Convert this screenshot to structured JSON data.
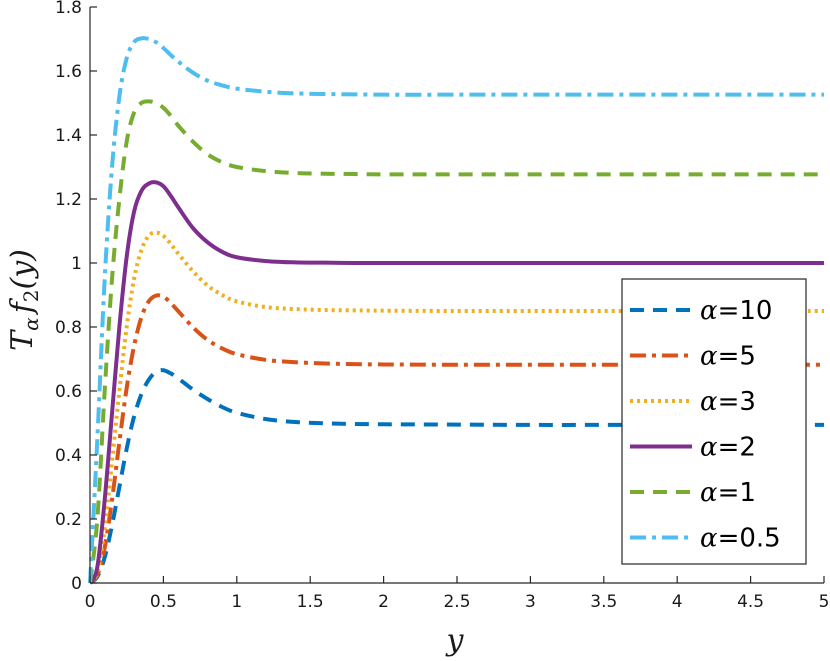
{
  "chart_data": {
    "type": "line",
    "title": "",
    "xlabel": "y",
    "ylabel": "T_α f_2(y)",
    "ylabel_parts": {
      "T": "T",
      "sub_alpha": "α",
      "f": "f",
      "sub_2": "2",
      "arg": "(y)"
    },
    "xlim": [
      0,
      5
    ],
    "ylim": [
      0,
      1.8
    ],
    "xticks": [
      0,
      0.5,
      1,
      1.5,
      2,
      2.5,
      3,
      3.5,
      4,
      4.5,
      5
    ],
    "xtick_labels": [
      "0",
      "0.5",
      "1",
      "1.5",
      "2",
      "2.5",
      "3",
      "3.5",
      "4",
      "4.5",
      "5"
    ],
    "yticks": [
      0,
      0.2,
      0.4,
      0.6,
      0.8,
      1,
      1.2,
      1.4,
      1.6,
      1.8
    ],
    "ytick_labels": [
      "0",
      "0.2",
      "0.4",
      "0.6",
      "0.8",
      "1",
      "1.2",
      "1.4",
      "1.6",
      "1.8"
    ],
    "grid": false,
    "legend_position": "right",
    "x": [
      0,
      0.05,
      0.1,
      0.15,
      0.2,
      0.25,
      0.3,
      0.35,
      0.4,
      0.45,
      0.5,
      0.55,
      0.6,
      0.7,
      0.8,
      0.9,
      1.0,
      1.2,
      1.4,
      1.6,
      1.8,
      2.0,
      2.5,
      3.0,
      3.5,
      4.0,
      4.5,
      5.0
    ],
    "series": [
      {
        "name": "α=10",
        "legend_prefix": "α",
        "legend_suffix": "=10",
        "color": "#0072BD",
        "dash": "14,9",
        "width": 4,
        "values": [
          0,
          0.02,
          0.08,
          0.18,
          0.3,
          0.42,
          0.52,
          0.59,
          0.635,
          0.66,
          0.665,
          0.655,
          0.64,
          0.605,
          0.575,
          0.55,
          0.532,
          0.512,
          0.503,
          0.499,
          0.497,
          0.496,
          0.495,
          0.494,
          0.494,
          0.494,
          0.494,
          0.494
        ]
      },
      {
        "name": "α=5",
        "legend_prefix": "α",
        "legend_suffix": "=5",
        "color": "#D95319",
        "dash": "16,6,4,6",
        "width": 4,
        "values": [
          0,
          0.025,
          0.11,
          0.26,
          0.44,
          0.61,
          0.74,
          0.83,
          0.88,
          0.898,
          0.895,
          0.875,
          0.85,
          0.8,
          0.76,
          0.733,
          0.715,
          0.697,
          0.69,
          0.686,
          0.684,
          0.683,
          0.682,
          0.682,
          0.682,
          0.682,
          0.682,
          0.682
        ]
      },
      {
        "name": "α=3",
        "legend_prefix": "α",
        "legend_suffix": "=3",
        "color": "#EDB120",
        "dash": "3,4",
        "width": 4,
        "values": [
          0,
          0.035,
          0.17,
          0.38,
          0.6,
          0.8,
          0.95,
          1.04,
          1.085,
          1.095,
          1.085,
          1.06,
          1.03,
          0.975,
          0.93,
          0.9,
          0.88,
          0.862,
          0.856,
          0.853,
          0.852,
          0.851,
          0.85,
          0.85,
          0.85,
          0.85,
          0.85,
          0.85
        ]
      },
      {
        "name": "α=2",
        "legend_prefix": "α",
        "legend_suffix": "=2",
        "color": "#7E2F8E",
        "dash": "",
        "width": 4,
        "values": [
          0,
          0.05,
          0.26,
          0.53,
          0.8,
          1.02,
          1.16,
          1.225,
          1.248,
          1.252,
          1.24,
          1.21,
          1.175,
          1.11,
          1.065,
          1.035,
          1.018,
          1.006,
          1.002,
          1.001,
          1.0,
          1.0,
          1.0,
          1.0,
          1.0,
          1.0,
          1.0,
          1.0
        ]
      },
      {
        "name": "α=1",
        "legend_prefix": "α",
        "legend_suffix": "=1",
        "color": "#77AC30",
        "dash": "14,9",
        "width": 4,
        "values": [
          0,
          0.2,
          0.6,
          0.95,
          1.2,
          1.38,
          1.47,
          1.5,
          1.505,
          1.5,
          1.485,
          1.46,
          1.43,
          1.38,
          1.34,
          1.315,
          1.3,
          1.287,
          1.281,
          1.279,
          1.278,
          1.277,
          1.277,
          1.277,
          1.277,
          1.277,
          1.277,
          1.277
        ]
      },
      {
        "name": "α=0.5",
        "legend_prefix": "α",
        "legend_suffix": "=0.5",
        "color": "#4DBEEE",
        "dash": "16,6,4,6",
        "width": 4,
        "values": [
          0,
          0.45,
          0.95,
          1.3,
          1.52,
          1.64,
          1.69,
          1.702,
          1.7,
          1.69,
          1.672,
          1.65,
          1.63,
          1.595,
          1.57,
          1.555,
          1.545,
          1.535,
          1.53,
          1.528,
          1.527,
          1.526,
          1.526,
          1.526,
          1.526,
          1.526,
          1.526,
          1.526
        ]
      }
    ]
  }
}
